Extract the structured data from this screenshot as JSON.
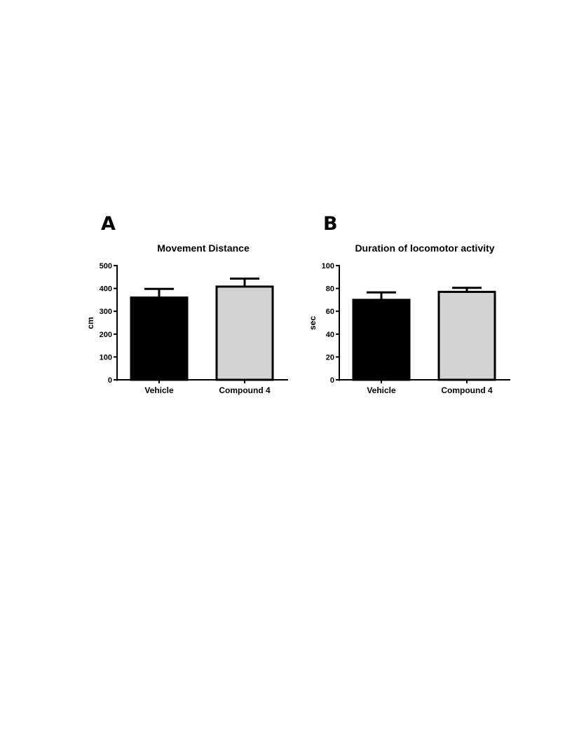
{
  "chart_data": [
    {
      "panel": "A",
      "type": "bar",
      "title": "Movement Distance",
      "xlabel": "",
      "ylabel": "cm",
      "ylim": [
        0,
        500
      ],
      "yticks": [
        "0",
        "100",
        "200",
        "300",
        "400",
        "500"
      ],
      "categories": [
        "Vehicle",
        "Compound 4"
      ],
      "values": [
        360,
        408
      ],
      "errors": [
        38,
        35
      ],
      "colors": [
        "#000000",
        "#d3d3d3"
      ],
      "grid": false,
      "legend": "none"
    },
    {
      "panel": "B",
      "type": "bar",
      "title": "Duration of locomotor activity",
      "xlabel": "",
      "ylabel": "sec",
      "ylim": [
        0,
        100
      ],
      "yticks": [
        "0",
        "20",
        "40",
        "60",
        "80",
        "100"
      ],
      "categories": [
        "Vehicle",
        "Compound 4"
      ],
      "values": [
        70,
        77
      ],
      "errors": [
        6.5,
        3.5
      ],
      "colors": [
        "#000000",
        "#d3d3d3"
      ],
      "grid": false,
      "legend": "none"
    }
  ]
}
